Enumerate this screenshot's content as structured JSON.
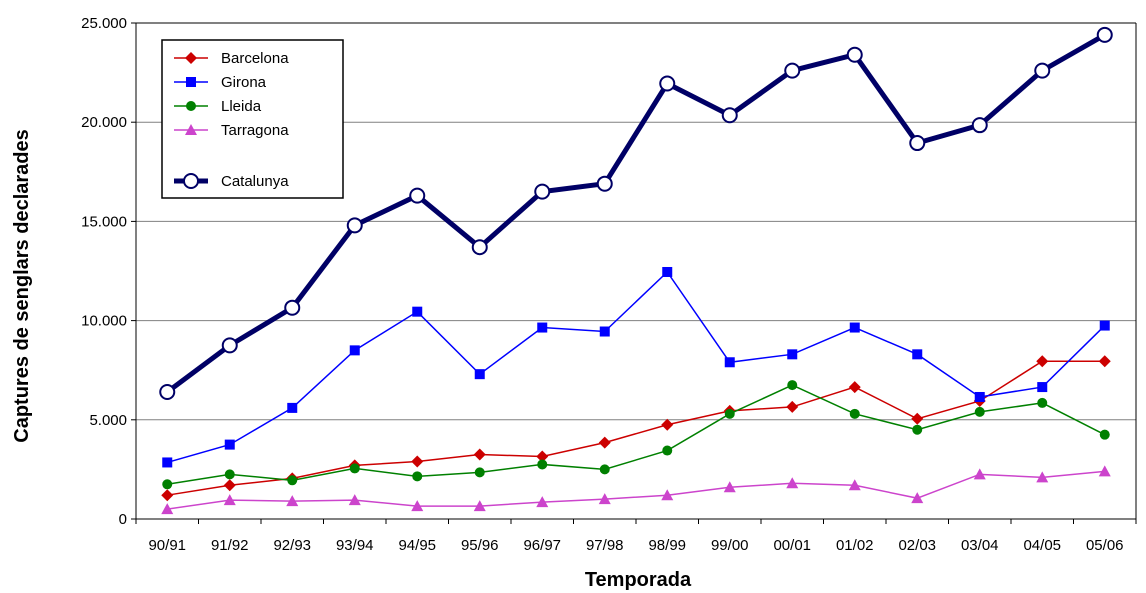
{
  "chart_data": {
    "type": "line",
    "xlabel": "Temporada",
    "ylabel": "Captures de senglars declarades",
    "ylim": [
      0,
      25000
    ],
    "yticks": [
      0,
      5000,
      10000,
      15000,
      20000,
      25000
    ],
    "ytick_labels": [
      "0",
      "5.000",
      "10.000",
      "15.000",
      "20.000",
      "25.000"
    ],
    "categories": [
      "90/91",
      "91/92",
      "92/93",
      "93/94",
      "94/95",
      "95/96",
      "96/97",
      "97/98",
      "98/99",
      "99/00",
      "00/01",
      "01/02",
      "02/03",
      "03/04",
      "04/05",
      "05/06"
    ],
    "grid": "horizontal",
    "legend_position": "top-left",
    "series": [
      {
        "name": "Barcelona",
        "color": "#cc0000",
        "marker": "diamond",
        "values": [
          1200,
          1700,
          2050,
          2700,
          2900,
          3250,
          3150,
          3850,
          4750,
          5450,
          5650,
          6650,
          5050,
          5950,
          7950,
          7950
        ]
      },
      {
        "name": "Girona",
        "color": "#0000ff",
        "marker": "square",
        "values": [
          2850,
          3750,
          5600,
          8500,
          10450,
          7300,
          9650,
          9450,
          12450,
          7900,
          8300,
          9650,
          8300,
          6150,
          6650,
          9750
        ]
      },
      {
        "name": "Lleida",
        "color": "#008000",
        "marker": "circle",
        "values": [
          1750,
          2250,
          1950,
          2550,
          2150,
          2350,
          2750,
          2500,
          3450,
          5300,
          6750,
          5300,
          4500,
          5400,
          5850,
          4250
        ]
      },
      {
        "name": "Tarragona",
        "color": "#cc44cc",
        "marker": "triangle",
        "values": [
          500,
          950,
          900,
          950,
          650,
          650,
          850,
          1000,
          1200,
          1600,
          1800,
          1700,
          1050,
          2250,
          2100,
          2400
        ]
      },
      {
        "name": "Catalunya",
        "color": "#000066",
        "marker": "open-circle",
        "values": [
          6400,
          8750,
          10650,
          14800,
          16300,
          13700,
          16500,
          16900,
          21950,
          20350,
          22600,
          23400,
          18950,
          19850,
          22600,
          24400
        ]
      }
    ]
  }
}
